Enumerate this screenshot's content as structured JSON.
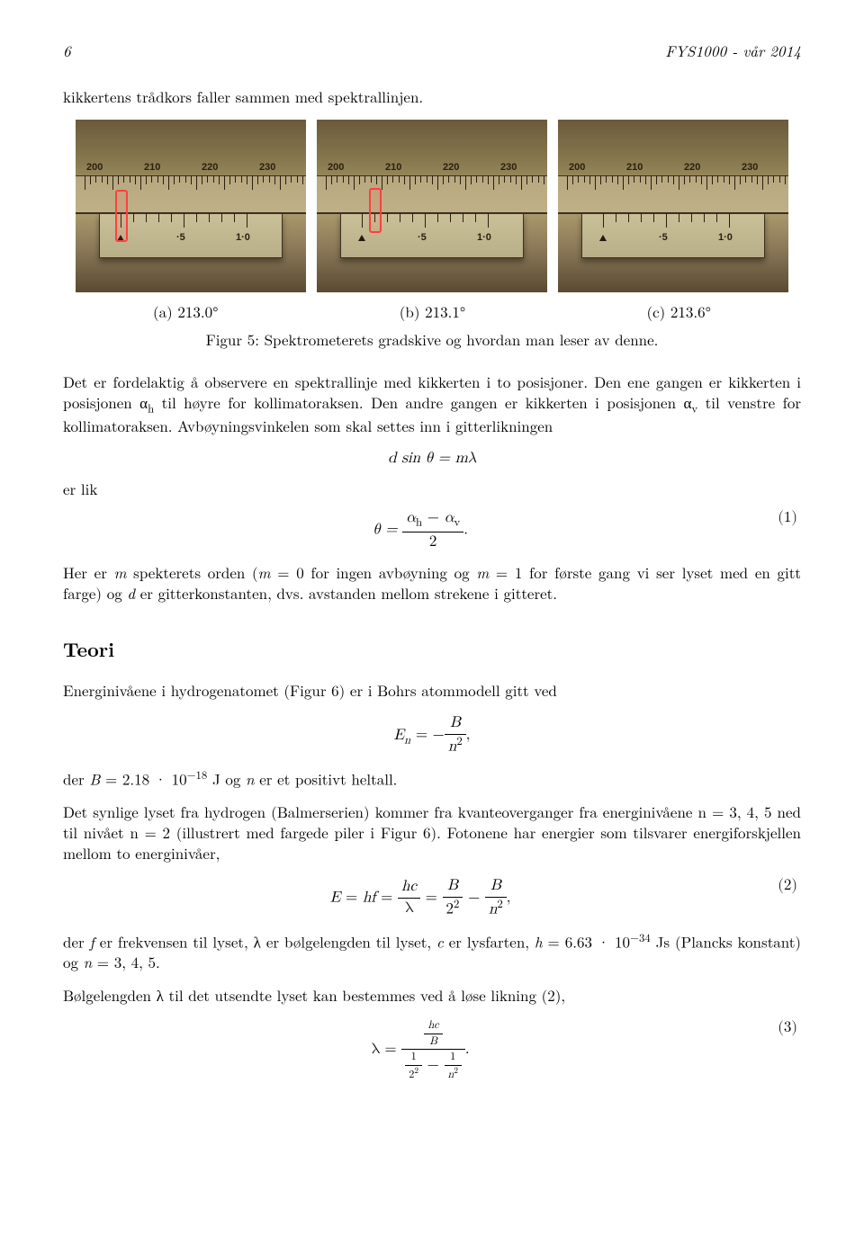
{
  "header": {
    "page_no": "6",
    "course": "FYS1000 - vår 2014"
  },
  "intro": "kikkertens trådkors faller sammen med spektrallinjen.",
  "dial": {
    "top_labels": [
      "200",
      "210",
      "220",
      "230"
    ],
    "bot_labels": [
      "·5",
      "1·0"
    ],
    "bg_top": "#6a5a3a",
    "bg_mid": "#b0a070",
    "scale_color": "#c0b088",
    "vernier_color": "#cac098",
    "tick_color": "#2a2010",
    "marker_color": "#ff4040"
  },
  "captions": {
    "a": "(a) 213.0°",
    "b": "(b) 213.1°",
    "c": "(c) 213.6°",
    "fig": "Figur 5: Spektrometerets gradskive og hvordan man leser av denne."
  },
  "p1a": "Det er fordelaktig å observere en spektrallinje med kikkerten i to posisjoner. Den ene gangen er kikkerten i posisjonen α",
  "p1b": " til høyre for kollimatoraksen. Den andre gangen er kikkerten i posisjonen α",
  "p1c": " til venstre for kollimatoraksen. Avbøyningsvinkelen som skal settes inn i gitterlikningen",
  "eq1_lead": "er lik",
  "eq1": {
    "lhs": "d sin θ = mλ",
    "theta": "θ =",
    "num": "α",
    "den": "2",
    "tag": "(1)"
  },
  "p2a": "Her er ",
  "p2b": " spekterets orden (",
  "p2c": " = 0 for ingen avbøyning og ",
  "p2d": " = 1 for første gang vi ser lyset med en gitt farge) og ",
  "p2e": " er gitterkonstanten, dvs. avstanden mellom strekene i gitteret.",
  "teori": "Teori",
  "p3": "Energinivåene i hydrogenatomet (Figur 6) er i Bohrs atommodell gitt ved",
  "eq2": {
    "lhs": "E",
    "n": "n",
    "eq": " = −",
    "num": "B",
    "den": "n",
    "comma": ","
  },
  "p4a": "der ",
  "p4b": " = 2.18 · 10",
  "p4c": " J og ",
  "p4d": " er et positivt heltall.",
  "p5": "Det synlige lyset fra hydrogen (Balmerserien) kommer fra kvanteoverganger fra energinivåene n = 3, 4, 5 ned til nivået n = 2 (illustrert med fargede piler i Figur 6). Fotonene har energier som tilsvarer energiforskjellen mellom to energinivåer,",
  "eq3": {
    "tag": "(2)"
  },
  "p6a": "der ",
  "p6b": " er frekvensen til lyset, λ er bølgelengden til lyset, ",
  "p6c": " er lysfarten, ",
  "p6d": " = 6.63 · 10",
  "p6e": " Js (Plancks konstant) og ",
  "p6f": " = 3, 4, 5.",
  "p7": "Bølgelengden λ til det utsendte lyset kan bestemmes ved å løse likning (2),",
  "eq4": {
    "tag": "(3)"
  }
}
